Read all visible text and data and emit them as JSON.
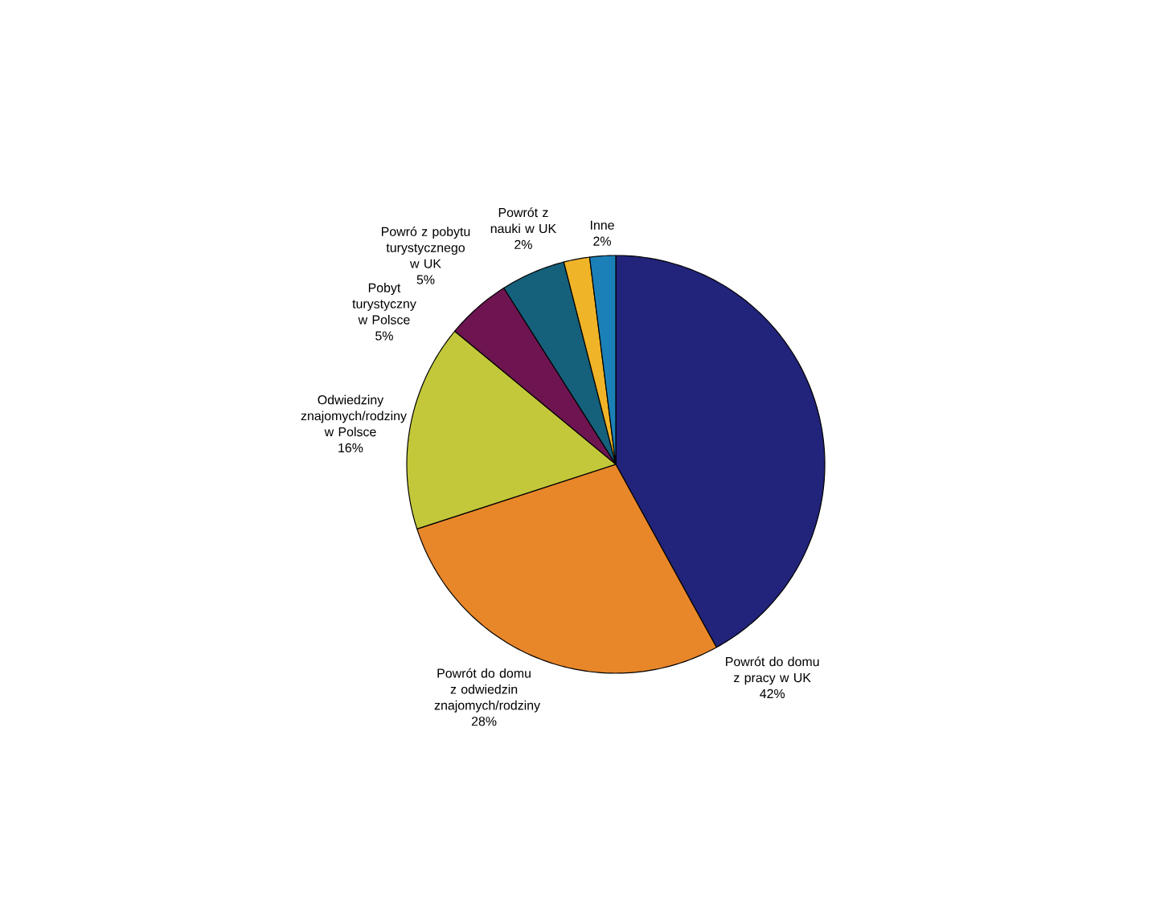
{
  "chart_data": {
    "type": "pie",
    "categories": [
      "Powrót do domu z pracy w UK",
      "Powrót do domu z odwiedzin znajomych/rodziny",
      "Odwiedziny znajomych/rodziny w Polsce",
      "Pobyt turystyczny w Polsce",
      "Powró z pobytu turystycznego w UK",
      "Powrót z nauki w UK",
      "Inne"
    ],
    "values": [
      42,
      28,
      16,
      5,
      5,
      2,
      2
    ],
    "value_labels": [
      "42%",
      "28%",
      "16%",
      "5%",
      "5%",
      "2%",
      "2%"
    ],
    "colors": [
      "#22237a",
      "#e8862a",
      "#c3c83a",
      "#6e1450",
      "#15607a",
      "#f0b428",
      "#1c80b8"
    ]
  }
}
